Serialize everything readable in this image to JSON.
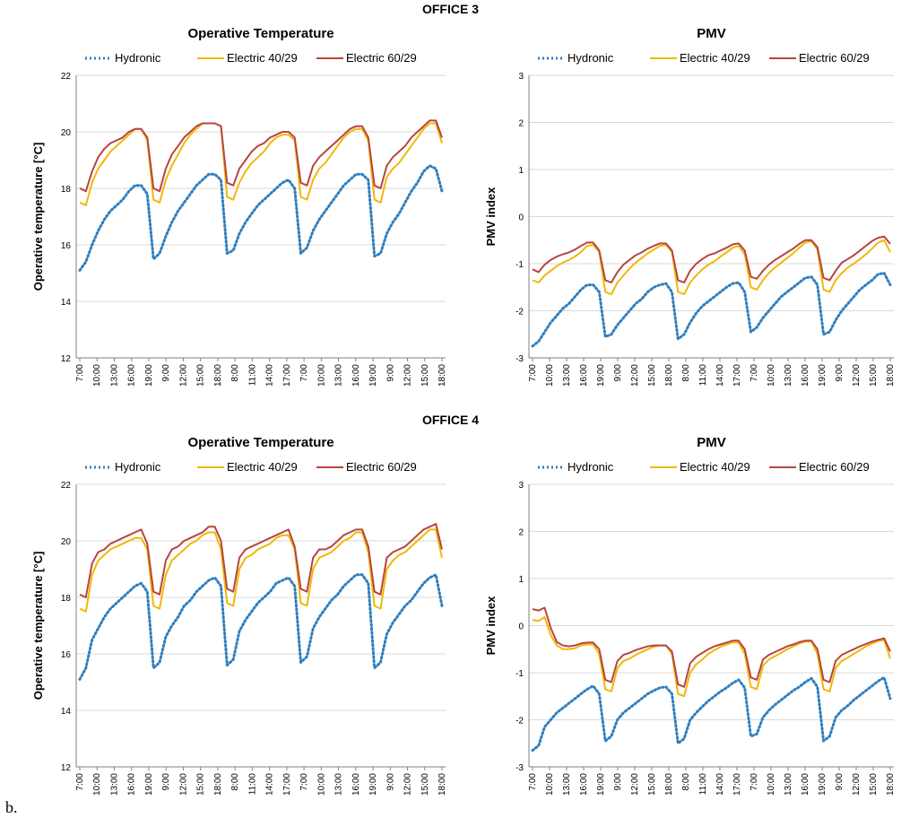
{
  "offices": [
    "OFFICE 3",
    "OFFICE 4"
  ],
  "panel_label": "b.",
  "colors": {
    "hydronic": "#2E7EBF",
    "electric40": "#F2B705",
    "electric60": "#B8453E",
    "grid": "#D9D9D9",
    "axis": "#808080"
  },
  "chart_data": [
    {
      "type": "line",
      "office": "OFFICE 3",
      "title": "Operative Temperature",
      "ylabel": "Operative temperature [°C]",
      "xlabel": "",
      "ylim": [
        12,
        22
      ],
      "yticks": [
        12,
        14,
        16,
        18,
        20,
        22
      ],
      "xticks": [
        "7:00",
        "10:00",
        "13:00",
        "16:00",
        "19:00",
        "9:00",
        "12:00",
        "15:00",
        "18:00",
        "8:00",
        "11:00",
        "14:00",
        "17:00",
        "7:00",
        "10:00",
        "13:00",
        "16:00",
        "19:00",
        "9:00",
        "12:00",
        "15:00",
        "18:00"
      ],
      "legend": [
        "Hydronic",
        "Electric 40/29",
        "Electric 60/29"
      ],
      "series": [
        {
          "name": "Hydronic",
          "style": "dotted",
          "values": [
            15.1,
            15.4,
            16.0,
            16.5,
            16.9,
            17.2,
            17.4,
            17.6,
            17.9,
            18.1,
            18.1,
            17.8,
            15.5,
            15.7,
            16.3,
            16.8,
            17.2,
            17.5,
            17.8,
            18.1,
            18.3,
            18.5,
            18.5,
            18.3,
            15.7,
            15.8,
            16.4,
            16.8,
            17.1,
            17.4,
            17.6,
            17.8,
            18.0,
            18.2,
            18.3,
            18.0,
            15.7,
            15.9,
            16.5,
            16.9,
            17.2,
            17.5,
            17.8,
            18.1,
            18.3,
            18.5,
            18.5,
            18.3,
            15.6,
            15.7,
            16.4,
            16.8,
            17.1,
            17.5,
            17.9,
            18.2,
            18.6,
            18.8,
            18.7,
            17.9
          ]
        },
        {
          "name": "Electric 40/29",
          "style": "solid",
          "values": [
            17.5,
            17.4,
            18.2,
            18.7,
            19.0,
            19.3,
            19.5,
            19.7,
            19.9,
            20.1,
            20.1,
            19.7,
            17.6,
            17.5,
            18.3,
            18.8,
            19.2,
            19.6,
            19.9,
            20.1,
            20.3,
            20.3,
            20.3,
            20.2,
            17.7,
            17.6,
            18.2,
            18.6,
            18.9,
            19.1,
            19.3,
            19.6,
            19.8,
            19.9,
            19.9,
            19.7,
            17.7,
            17.6,
            18.3,
            18.7,
            18.9,
            19.2,
            19.5,
            19.8,
            20.0,
            20.1,
            20.1,
            19.7,
            17.6,
            17.5,
            18.4,
            18.7,
            18.9,
            19.2,
            19.5,
            19.8,
            20.1,
            20.3,
            20.3,
            19.6
          ]
        },
        {
          "name": "Electric 60/29",
          "style": "solid",
          "values": [
            18.0,
            17.9,
            18.6,
            19.1,
            19.4,
            19.6,
            19.7,
            19.8,
            20.0,
            20.1,
            20.1,
            19.8,
            18.0,
            17.9,
            18.7,
            19.2,
            19.5,
            19.8,
            20.0,
            20.2,
            20.3,
            20.3,
            20.3,
            20.2,
            18.2,
            18.1,
            18.7,
            19.0,
            19.3,
            19.5,
            19.6,
            19.8,
            19.9,
            20.0,
            20.0,
            19.8,
            18.2,
            18.1,
            18.8,
            19.1,
            19.3,
            19.5,
            19.7,
            19.9,
            20.1,
            20.2,
            20.2,
            19.8,
            18.1,
            18.0,
            18.8,
            19.1,
            19.3,
            19.5,
            19.8,
            20.0,
            20.2,
            20.4,
            20.4,
            19.8
          ]
        }
      ]
    },
    {
      "type": "line",
      "office": "OFFICE 3",
      "title": "PMV",
      "ylabel": "PMV index",
      "xlabel": "",
      "ylim": [
        -3,
        3
      ],
      "yticks": [
        -3,
        -2,
        -1,
        0,
        1,
        2,
        3
      ],
      "xticks": [
        "7:00",
        "10:00",
        "13:00",
        "16:00",
        "19:00",
        "9:00",
        "12:00",
        "15:00",
        "18:00",
        "8:00",
        "11:00",
        "14:00",
        "17:00",
        "7:00",
        "10:00",
        "13:00",
        "16:00",
        "19:00",
        "9:00",
        "12:00",
        "15:00",
        "18:00"
      ],
      "legend": [
        "Hydronic",
        "Electric 40/29",
        "Electric 60/29"
      ],
      "series": [
        {
          "name": "Hydronic",
          "style": "dotted",
          "values": [
            -2.75,
            -2.65,
            -2.45,
            -2.25,
            -2.1,
            -1.95,
            -1.85,
            -1.7,
            -1.55,
            -1.45,
            -1.45,
            -1.6,
            -2.55,
            -2.5,
            -2.3,
            -2.15,
            -2.0,
            -1.85,
            -1.75,
            -1.6,
            -1.5,
            -1.45,
            -1.42,
            -1.6,
            -2.6,
            -2.5,
            -2.25,
            -2.05,
            -1.9,
            -1.8,
            -1.7,
            -1.6,
            -1.5,
            -1.42,
            -1.4,
            -1.6,
            -2.45,
            -2.35,
            -2.15,
            -2.0,
            -1.85,
            -1.7,
            -1.6,
            -1.5,
            -1.4,
            -1.3,
            -1.28,
            -1.45,
            -2.5,
            -2.45,
            -2.2,
            -2.0,
            -1.85,
            -1.7,
            -1.55,
            -1.45,
            -1.35,
            -1.22,
            -1.2,
            -1.45
          ]
        },
        {
          "name": "Electric 40/29",
          "style": "solid",
          "values": [
            -1.35,
            -1.4,
            -1.25,
            -1.15,
            -1.05,
            -0.98,
            -0.92,
            -0.85,
            -0.75,
            -0.62,
            -0.6,
            -0.75,
            -1.6,
            -1.65,
            -1.4,
            -1.25,
            -1.1,
            -0.98,
            -0.88,
            -0.78,
            -0.7,
            -0.62,
            -0.6,
            -0.75,
            -1.6,
            -1.65,
            -1.4,
            -1.25,
            -1.12,
            -1.02,
            -0.95,
            -0.85,
            -0.76,
            -0.66,
            -0.62,
            -0.8,
            -1.5,
            -1.55,
            -1.35,
            -1.2,
            -1.08,
            -0.98,
            -0.88,
            -0.78,
            -0.66,
            -0.55,
            -0.52,
            -0.7,
            -1.55,
            -1.6,
            -1.35,
            -1.2,
            -1.08,
            -1.0,
            -0.9,
            -0.8,
            -0.68,
            -0.55,
            -0.5,
            -0.75
          ]
        },
        {
          "name": "Electric 60/29",
          "style": "solid",
          "values": [
            -1.12,
            -1.18,
            -1.02,
            -0.92,
            -0.85,
            -0.8,
            -0.76,
            -0.7,
            -0.62,
            -0.55,
            -0.55,
            -0.72,
            -1.35,
            -1.4,
            -1.18,
            -1.02,
            -0.92,
            -0.82,
            -0.76,
            -0.68,
            -0.62,
            -0.57,
            -0.57,
            -0.72,
            -1.35,
            -1.4,
            -1.15,
            -1.0,
            -0.9,
            -0.82,
            -0.78,
            -0.72,
            -0.66,
            -0.59,
            -0.57,
            -0.72,
            -1.28,
            -1.32,
            -1.15,
            -1.02,
            -0.92,
            -0.84,
            -0.76,
            -0.68,
            -0.58,
            -0.5,
            -0.5,
            -0.65,
            -1.3,
            -1.35,
            -1.15,
            -0.98,
            -0.9,
            -0.82,
            -0.72,
            -0.62,
            -0.52,
            -0.45,
            -0.42,
            -0.58
          ]
        }
      ]
    },
    {
      "type": "line",
      "office": "OFFICE 4",
      "title": "Operative Temperature",
      "ylabel": "Operative temperature [°C]",
      "xlabel": "",
      "ylim": [
        12,
        22
      ],
      "yticks": [
        12,
        14,
        16,
        18,
        20,
        22
      ],
      "xticks": [
        "7:00",
        "10:00",
        "13:00",
        "16:00",
        "19:00",
        "9:00",
        "12:00",
        "15:00",
        "18:00",
        "8:00",
        "11:00",
        "14:00",
        "17:00",
        "7:00",
        "10:00",
        "13:00",
        "16:00",
        "19:00",
        "9:00",
        "12:00",
        "15:00",
        "18:00"
      ],
      "legend": [
        "Hydronic",
        "Electric 40/29",
        "Electric 60/29"
      ],
      "series": [
        {
          "name": "Hydronic",
          "style": "dotted",
          "values": [
            15.1,
            15.5,
            16.5,
            16.9,
            17.3,
            17.6,
            17.8,
            18.0,
            18.2,
            18.4,
            18.5,
            18.2,
            15.5,
            15.7,
            16.6,
            17.0,
            17.3,
            17.7,
            17.9,
            18.2,
            18.4,
            18.6,
            18.7,
            18.4,
            15.6,
            15.8,
            16.8,
            17.2,
            17.5,
            17.8,
            18.0,
            18.2,
            18.5,
            18.6,
            18.7,
            18.4,
            15.7,
            15.9,
            16.9,
            17.3,
            17.6,
            17.9,
            18.1,
            18.4,
            18.6,
            18.8,
            18.8,
            18.5,
            15.5,
            15.7,
            16.7,
            17.1,
            17.4,
            17.7,
            17.9,
            18.2,
            18.5,
            18.7,
            18.8,
            17.7
          ]
        },
        {
          "name": "Electric 40/29",
          "style": "solid",
          "values": [
            17.6,
            17.5,
            18.8,
            19.3,
            19.5,
            19.7,
            19.8,
            19.9,
            20.0,
            20.1,
            20.1,
            19.7,
            17.7,
            17.6,
            18.8,
            19.3,
            19.5,
            19.7,
            19.9,
            20.0,
            20.2,
            20.3,
            20.3,
            19.7,
            17.8,
            17.7,
            19.0,
            19.4,
            19.5,
            19.7,
            19.8,
            19.9,
            20.1,
            20.2,
            20.2,
            19.7,
            17.8,
            17.7,
            19.0,
            19.4,
            19.5,
            19.6,
            19.8,
            20.0,
            20.1,
            20.3,
            20.3,
            19.6,
            17.7,
            17.6,
            19.0,
            19.3,
            19.5,
            19.6,
            19.8,
            20.0,
            20.2,
            20.4,
            20.4,
            19.4
          ]
        },
        {
          "name": "Electric 60/29",
          "style": "solid",
          "values": [
            18.1,
            18.0,
            19.2,
            19.6,
            19.7,
            19.9,
            20.0,
            20.1,
            20.2,
            20.3,
            20.4,
            19.9,
            18.2,
            18.1,
            19.3,
            19.7,
            19.8,
            20.0,
            20.1,
            20.2,
            20.3,
            20.5,
            20.5,
            20.0,
            18.3,
            18.2,
            19.4,
            19.7,
            19.8,
            19.9,
            20.0,
            20.1,
            20.2,
            20.3,
            20.4,
            19.8,
            18.3,
            18.2,
            19.4,
            19.7,
            19.7,
            19.8,
            20.0,
            20.2,
            20.3,
            20.4,
            20.4,
            19.8,
            18.2,
            18.1,
            19.4,
            19.6,
            19.7,
            19.8,
            20.0,
            20.2,
            20.4,
            20.5,
            20.6,
            19.7
          ]
        }
      ]
    },
    {
      "type": "line",
      "office": "OFFICE 4",
      "title": "PMV",
      "ylabel": "PMV index",
      "xlabel": "",
      "ylim": [
        -3,
        3
      ],
      "yticks": [
        -3,
        -2,
        -1,
        0,
        1,
        2,
        3
      ],
      "xticks": [
        "7:00",
        "10:00",
        "13:00",
        "16:00",
        "19:00",
        "9:00",
        "12:00",
        "15:00",
        "18:00",
        "8:00",
        "11:00",
        "14:00",
        "17:00",
        "7:00",
        "10:00",
        "13:00",
        "16:00",
        "19:00",
        "9:00",
        "12:00",
        "15:00",
        "18:00"
      ],
      "legend": [
        "Hydronic",
        "Electric 40/29",
        "Electric 60/29"
      ],
      "series": [
        {
          "name": "Hydronic",
          "style": "dotted",
          "values": [
            -2.65,
            -2.55,
            -2.15,
            -2.0,
            -1.85,
            -1.75,
            -1.65,
            -1.55,
            -1.45,
            -1.35,
            -1.28,
            -1.45,
            -2.45,
            -2.35,
            -2.0,
            -1.85,
            -1.75,
            -1.65,
            -1.55,
            -1.45,
            -1.38,
            -1.32,
            -1.3,
            -1.45,
            -2.5,
            -2.4,
            -2.0,
            -1.85,
            -1.72,
            -1.6,
            -1.5,
            -1.4,
            -1.32,
            -1.22,
            -1.15,
            -1.32,
            -2.35,
            -2.3,
            -1.95,
            -1.8,
            -1.68,
            -1.58,
            -1.48,
            -1.38,
            -1.3,
            -1.2,
            -1.12,
            -1.3,
            -2.45,
            -2.35,
            -1.95,
            -1.8,
            -1.7,
            -1.58,
            -1.48,
            -1.38,
            -1.28,
            -1.18,
            -1.1,
            -1.55
          ]
        },
        {
          "name": "Electric 40/29",
          "style": "solid",
          "values": [
            0.12,
            0.1,
            0.18,
            -0.2,
            -0.42,
            -0.5,
            -0.5,
            -0.48,
            -0.42,
            -0.4,
            -0.4,
            -0.6,
            -1.35,
            -1.4,
            -0.9,
            -0.75,
            -0.7,
            -0.62,
            -0.56,
            -0.5,
            -0.45,
            -0.42,
            -0.42,
            -0.6,
            -1.45,
            -1.5,
            -1.0,
            -0.82,
            -0.72,
            -0.6,
            -0.52,
            -0.45,
            -0.4,
            -0.36,
            -0.36,
            -0.6,
            -1.3,
            -1.35,
            -0.85,
            -0.72,
            -0.65,
            -0.58,
            -0.5,
            -0.44,
            -0.38,
            -0.34,
            -0.34,
            -0.6,
            -1.35,
            -1.4,
            -0.9,
            -0.75,
            -0.68,
            -0.6,
            -0.52,
            -0.44,
            -0.38,
            -0.33,
            -0.3,
            -0.7
          ]
        },
        {
          "name": "Electric 60/29",
          "style": "solid",
          "values": [
            0.35,
            0.32,
            0.38,
            -0.05,
            -0.35,
            -0.42,
            -0.44,
            -0.42,
            -0.38,
            -0.36,
            -0.36,
            -0.5,
            -1.15,
            -1.2,
            -0.75,
            -0.62,
            -0.58,
            -0.52,
            -0.48,
            -0.44,
            -0.42,
            -0.42,
            -0.42,
            -0.55,
            -1.25,
            -1.3,
            -0.8,
            -0.66,
            -0.58,
            -0.5,
            -0.44,
            -0.4,
            -0.36,
            -0.32,
            -0.32,
            -0.5,
            -1.1,
            -1.15,
            -0.72,
            -0.62,
            -0.56,
            -0.5,
            -0.44,
            -0.4,
            -0.35,
            -0.32,
            -0.32,
            -0.5,
            -1.15,
            -1.2,
            -0.75,
            -0.62,
            -0.56,
            -0.5,
            -0.44,
            -0.39,
            -0.34,
            -0.3,
            -0.27,
            -0.55
          ]
        }
      ]
    }
  ]
}
